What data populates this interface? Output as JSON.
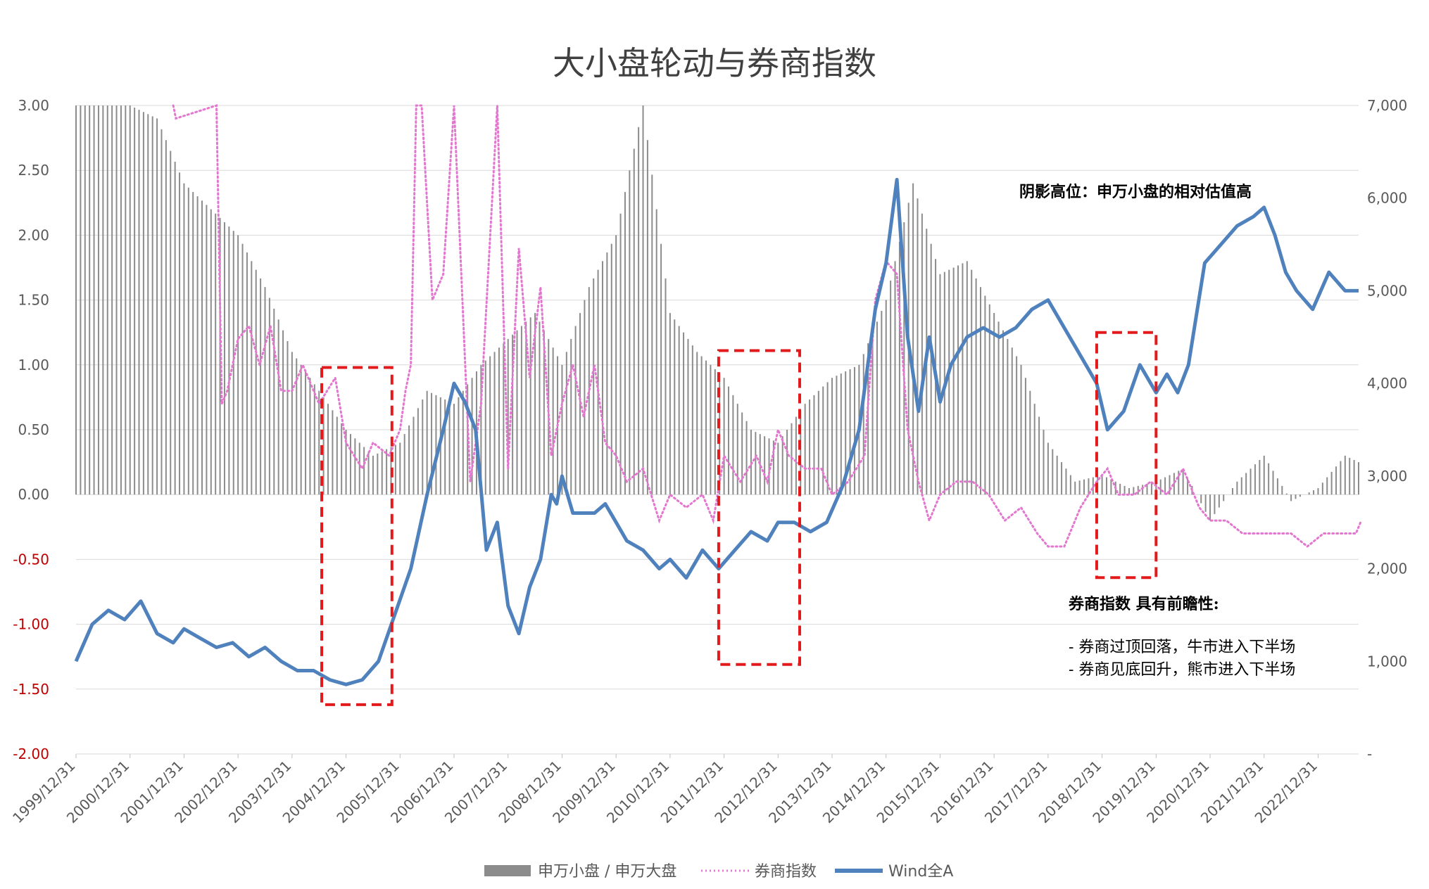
{
  "chart_data": {
    "type": "bar+line",
    "title": "大小盘轮动与券商指数",
    "left_axis": {
      "ylim": [
        -2.0,
        3.0
      ],
      "ticks": [
        3.0,
        2.5,
        2.0,
        1.5,
        1.0,
        0.5,
        0.0,
        -0.5,
        -1.0,
        -1.5,
        -2.0
      ],
      "tick_labels": [
        "3.00",
        "2.50",
        "2.00",
        "1.50",
        "1.00",
        "0.50",
        "0.00",
        "-0.50",
        "-1.00",
        "-1.50",
        "-2.00"
      ]
    },
    "right_axis": {
      "ylim": [
        0,
        7000
      ],
      "ticks": [
        7000,
        6000,
        5000,
        4000,
        3000,
        2000,
        1000,
        0
      ],
      "tick_labels": [
        "7,000",
        "6,000",
        "5,000",
        "4,000",
        "3,000",
        "2,000",
        "1,000",
        "-"
      ]
    },
    "x_axis": {
      "start": "1999/12/31",
      "end": "2023/09/30",
      "tick_labels": [
        "1999/12/31",
        "2000/12/31",
        "2001/12/31",
        "2002/12/31",
        "2003/12/31",
        "2004/12/31",
        "2005/12/31",
        "2006/12/31",
        "2007/12/31",
        "2008/12/31",
        "2009/12/31",
        "2010/12/31",
        "2011/12/31",
        "2012/12/31",
        "2013/12/31",
        "2014/12/31",
        "2015/12/31",
        "2016/12/31",
        "2017/12/31",
        "2018/12/31",
        "2019/12/31",
        "2020/12/31",
        "2021/12/31",
        "2022/12/31"
      ]
    },
    "grid": true,
    "legend_position": "bottom-center",
    "series": [
      {
        "name": "申万小盘 / 申万大盘",
        "kind": "bar",
        "axis": "left",
        "color": "#8c8c8c",
        "x": [
          2000.0,
          2000.5,
          2001.0,
          2001.5,
          2002.0,
          2002.5,
          2003.0,
          2003.5,
          2004.0,
          2004.5,
          2005.0,
          2005.5,
          2006.0,
          2006.5,
          2007.0,
          2007.5,
          2008.0,
          2008.5,
          2009.0,
          2009.5,
          2010.0,
          2010.5,
          2011.0,
          2011.5,
          2012.0,
          2012.5,
          2013.0,
          2013.5,
          2014.0,
          2014.5,
          2015.0,
          2015.5,
          2016.0,
          2016.5,
          2017.0,
          2017.5,
          2018.0,
          2018.5,
          2019.0,
          2019.5,
          2020.0,
          2020.5,
          2021.0,
          2021.5,
          2022.0,
          2022.5,
          2023.0,
          2023.5,
          2023.75
        ],
        "values": [
          3.0,
          3.0,
          3.0,
          2.9,
          2.4,
          2.2,
          2.0,
          1.6,
          1.1,
          0.8,
          0.5,
          0.3,
          0.4,
          0.8,
          0.7,
          1.0,
          1.2,
          1.4,
          1.0,
          1.6,
          2.0,
          3.0,
          1.4,
          1.1,
          0.9,
          0.5,
          0.4,
          0.7,
          0.9,
          1.0,
          1.5,
          2.4,
          1.7,
          1.8,
          1.4,
          1.0,
          0.4,
          0.1,
          0.15,
          0.05,
          0.1,
          0.2,
          -0.2,
          0.1,
          0.3,
          -0.05,
          0.05,
          0.3,
          0.25
        ]
      },
      {
        "name": "券商指数",
        "kind": "line-dotted",
        "axis": "left",
        "color": "#e377d0",
        "x": [
          2001.8,
          2001.85,
          2002.6,
          2002.7,
          2002.8,
          2003.0,
          2003.2,
          2003.4,
          2003.6,
          2003.8,
          2004.0,
          2004.2,
          2004.5,
          2004.8,
          2005.0,
          2005.3,
          2005.5,
          2005.8,
          2006.0,
          2006.1,
          2006.2,
          2006.3,
          2006.4,
          2006.6,
          2006.8,
          2007.0,
          2007.3,
          2007.5,
          2007.8,
          2008.0,
          2008.2,
          2008.4,
          2008.6,
          2008.8,
          2009.0,
          2009.2,
          2009.4,
          2009.6,
          2009.8,
          2010.0,
          2010.2,
          2010.5,
          2010.8,
          2011.0,
          2011.3,
          2011.6,
          2011.8,
          2012.0,
          2012.3,
          2012.6,
          2012.8,
          2013.0,
          2013.2,
          2013.5,
          2013.8,
          2014.0,
          2014.3,
          2014.6,
          2014.8,
          2015.0,
          2015.2,
          2015.4,
          2015.6,
          2015.8,
          2016.0,
          2016.3,
          2016.6,
          2016.9,
          2017.2,
          2017.5,
          2017.8,
          2018.0,
          2018.3,
          2018.6,
          2018.9,
          2019.1,
          2019.3,
          2019.6,
          2019.9,
          2020.2,
          2020.5,
          2020.8,
          2021.0,
          2021.3,
          2021.6,
          2021.9,
          2022.2,
          2022.5,
          2022.8,
          2023.1,
          2023.4,
          2023.7,
          2023.8
        ],
        "values": [
          3.0,
          2.9,
          3.0,
          0.7,
          0.8,
          1.2,
          1.3,
          1.0,
          1.3,
          0.8,
          0.8,
          1.0,
          0.7,
          0.9,
          0.4,
          0.2,
          0.4,
          0.3,
          0.5,
          0.8,
          1.0,
          3.0,
          3.0,
          1.5,
          1.7,
          3.0,
          0.1,
          0.7,
          3.0,
          0.2,
          1.9,
          0.9,
          1.6,
          0.3,
          0.7,
          1.0,
          0.6,
          1.0,
          0.4,
          0.3,
          0.1,
          0.2,
          -0.2,
          0.0,
          -0.1,
          0.0,
          -0.2,
          0.3,
          0.1,
          0.3,
          0.1,
          0.5,
          0.3,
          0.2,
          0.2,
          0.0,
          0.1,
          0.3,
          1.5,
          1.8,
          1.7,
          0.5,
          0.1,
          -0.2,
          0.0,
          0.1,
          0.1,
          0.0,
          -0.2,
          -0.1,
          -0.3,
          -0.4,
          -0.4,
          -0.1,
          0.1,
          0.2,
          0.0,
          0.0,
          0.1,
          0.0,
          0.2,
          -0.1,
          -0.2,
          -0.2,
          -0.3,
          -0.3,
          -0.3,
          -0.3,
          -0.4,
          -0.3,
          -0.3,
          -0.3,
          -0.2
        ]
      },
      {
        "name": "Wind全A",
        "kind": "line",
        "axis": "right",
        "color": "#4f81bd",
        "x": [
          2000.0,
          2000.3,
          2000.6,
          2000.9,
          2001.2,
          2001.5,
          2001.8,
          2002.0,
          2002.3,
          2002.6,
          2002.9,
          2003.2,
          2003.5,
          2003.8,
          2004.1,
          2004.4,
          2004.7,
          2005.0,
          2005.3,
          2005.6,
          2005.9,
          2006.2,
          2006.5,
          2006.8,
          2007.0,
          2007.2,
          2007.4,
          2007.6,
          2007.8,
          2008.0,
          2008.2,
          2008.4,
          2008.6,
          2008.8,
          2008.9,
          2009.0,
          2009.2,
          2009.4,
          2009.6,
          2009.8,
          2010.0,
          2010.2,
          2010.5,
          2010.8,
          2011.0,
          2011.3,
          2011.6,
          2011.9,
          2012.2,
          2012.5,
          2012.8,
          2013.0,
          2013.3,
          2013.6,
          2013.9,
          2014.2,
          2014.5,
          2014.8,
          2015.0,
          2015.2,
          2015.4,
          2015.6,
          2015.8,
          2016.0,
          2016.2,
          2016.5,
          2016.8,
          2017.1,
          2017.4,
          2017.7,
          2018.0,
          2018.3,
          2018.6,
          2018.9,
          2019.1,
          2019.4,
          2019.7,
          2020.0,
          2020.2,
          2020.4,
          2020.6,
          2020.9,
          2021.2,
          2021.5,
          2021.8,
          2022.0,
          2022.2,
          2022.4,
          2022.6,
          2022.9,
          2023.2,
          2023.5,
          2023.75
        ],
        "values": [
          1000,
          1400,
          1550,
          1450,
          1650,
          1300,
          1200,
          1350,
          1250,
          1150,
          1200,
          1050,
          1150,
          1000,
          900,
          900,
          800,
          750,
          800,
          1000,
          1500,
          2000,
          2800,
          3500,
          4000,
          3800,
          3500,
          2200,
          2500,
          1600,
          1300,
          1800,
          2100,
          2800,
          2700,
          3000,
          2600,
          2600,
          2600,
          2700,
          2500,
          2300,
          2200,
          2000,
          2100,
          1900,
          2200,
          2000,
          2200,
          2400,
          2300,
          2500,
          2500,
          2400,
          2500,
          2900,
          3500,
          4800,
          5300,
          6200,
          4500,
          3700,
          4500,
          3800,
          4200,
          4500,
          4600,
          4500,
          4600,
          4800,
          4900,
          4600,
          4300,
          4000,
          3500,
          3700,
          4200,
          3900,
          4100,
          3900,
          4200,
          5300,
          5500,
          5700,
          5800,
          5900,
          5600,
          5200,
          5000,
          4800,
          5200,
          5000,
          5000
        ]
      }
    ],
    "annotations": {
      "shade_note": "阴影高位：申万小盘的相对估值高",
      "broker_lead_title": "券商指数 具有前瞻性:",
      "broker_lead_item1": "- 券商过顶回落，牛市进入下半场",
      "broker_lead_item2": "- 券商见底回升，熊市进入下半场"
    },
    "highlight_boxes": [
      {
        "x": [
          2004.55,
          2005.85
        ],
        "y_left": [
          -1.62,
          0.98
        ]
      },
      {
        "x": [
          2011.9,
          2013.4
        ],
        "y_left": [
          -1.31,
          1.11
        ]
      },
      {
        "x": [
          2018.9,
          2020.0
        ],
        "y_left": [
          -0.64,
          1.25
        ]
      }
    ]
  }
}
